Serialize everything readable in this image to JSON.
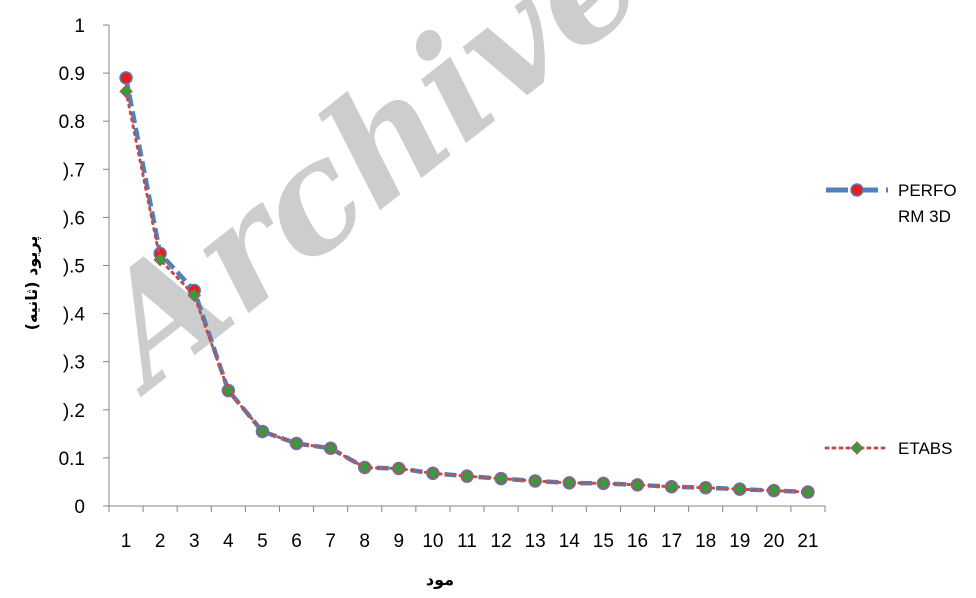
{
  "watermark": "Archive",
  "chart_data": {
    "type": "line",
    "title": "",
    "xlabel": "مود",
    "ylabel": "پریود (ثانیه)",
    "ylim": [
      0,
      1
    ],
    "y_ticks": [
      "0",
      "0.1",
      ").2",
      ").3",
      ").4",
      ").5",
      ").6",
      ").7",
      "0.8",
      "0.9",
      "1"
    ],
    "categories": [
      "1",
      "2",
      "3",
      "4",
      "5",
      "6",
      "7",
      "8",
      "9",
      "10",
      "11",
      "12",
      "13",
      "14",
      "15",
      "16",
      "17",
      "18",
      "19",
      "20",
      "21"
    ],
    "grid": false,
    "legend_position": "right",
    "series": [
      {
        "name": "PERFORM 3D",
        "legend_lines": [
          "PERFO",
          "RM 3D"
        ],
        "line_color": "#4f81bd",
        "marker_fill": "#e81c1c",
        "marker": "circle",
        "values": [
          0.89,
          0.525,
          0.448,
          0.24,
          0.155,
          0.13,
          0.12,
          0.08,
          0.078,
          0.068,
          0.062,
          0.057,
          0.052,
          0.048,
          0.047,
          0.044,
          0.04,
          0.038,
          0.035,
          0.032,
          0.029
        ]
      },
      {
        "name": "ETABS",
        "legend_lines": [
          "ETABS"
        ],
        "line_color": "#c0504d",
        "marker_fill": "#2e9e3e",
        "marker": "diamond",
        "values": [
          0.862,
          0.512,
          0.438,
          0.24,
          0.155,
          0.13,
          0.12,
          0.08,
          0.078,
          0.068,
          0.062,
          0.057,
          0.052,
          0.048,
          0.047,
          0.044,
          0.04,
          0.038,
          0.035,
          0.032,
          0.029
        ]
      }
    ]
  }
}
